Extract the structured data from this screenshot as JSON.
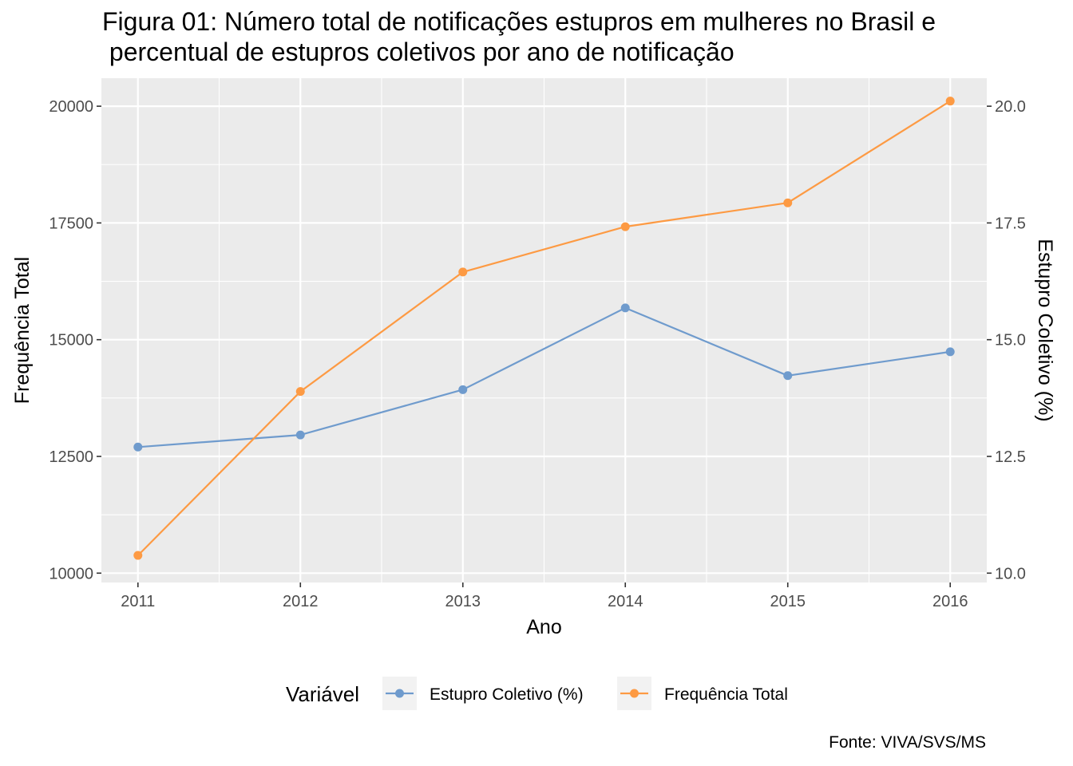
{
  "chart_data": {
    "type": "line",
    "title_line1": "Figura 01: Número total de notificações estupros em mulheres no Brasil e",
    "title_line2": " percentual de estupros coletivos por ano de notificação",
    "xlabel": "Ano",
    "ylabel_left": "Frequência Total",
    "ylabel_right": "Estupro Coletivo (%)",
    "x": [
      2011,
      2012,
      2013,
      2014,
      2015,
      2016
    ],
    "x_tick_labels": [
      "2011",
      "2012",
      "2013",
      "2014",
      "2015",
      "2016"
    ],
    "ylim_left": [
      9800,
      20600
    ],
    "ylim_right": [
      9.8,
      20.6
    ],
    "y_ticks_left": [
      "10000",
      "12500",
      "15000",
      "17500",
      "20000"
    ],
    "y_ticks_right": [
      "10.0",
      "12.5",
      "15.0",
      "17.5",
      "20.0"
    ],
    "series": [
      {
        "name": "Estupro Coletivo (%)",
        "axis": "right",
        "color": "#6f9bcd",
        "values": [
          12.7,
          12.96,
          13.93,
          15.68,
          14.23,
          14.74
        ]
      },
      {
        "name": "Frequência Total",
        "axis": "left",
        "color": "#fd9a43",
        "values": [
          10380,
          13890,
          16450,
          17420,
          17930,
          20110
        ]
      }
    ],
    "legend_title": "Variável",
    "legend_position": "bottom",
    "grid": true,
    "panel_color": "#ebebeb",
    "caption": "Fonte: VIVA/SVS/MS"
  }
}
